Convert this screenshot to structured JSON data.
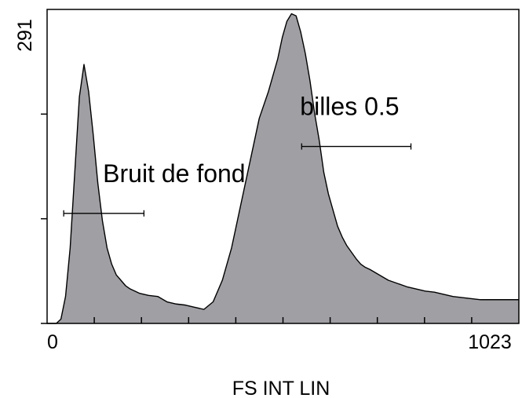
{
  "chart_data": {
    "type": "area",
    "title": "",
    "xlabel": "FS INT LIN",
    "ylabel": "",
    "xlim": [
      0,
      1023
    ],
    "ylim": [
      0,
      291
    ],
    "x_tick_labels": [
      "0",
      "1023"
    ],
    "y_tick_labels": [
      "291"
    ],
    "fill_color": "#a09fa4",
    "line_color": "#000000",
    "series": [
      {
        "x": [
          0,
          10,
          20,
          30,
          40,
          50,
          60,
          70,
          80,
          90,
          100,
          110,
          120,
          130,
          140,
          150,
          160,
          170,
          180,
          190,
          200,
          220,
          240,
          260,
          280,
          300,
          320,
          340,
          360,
          380,
          400,
          420,
          440,
          460,
          480,
          500,
          510,
          520,
          530,
          540,
          550,
          560,
          570,
          580,
          590,
          600,
          610,
          620,
          630,
          640,
          650,
          660,
          670,
          680,
          690,
          700,
          720,
          740,
          760,
          780,
          800,
          820,
          840,
          860,
          880,
          900,
          920,
          940,
          960,
          980,
          1000,
          1023
        ],
        "y": [
          0,
          0,
          0,
          4,
          25,
          70,
          140,
          210,
          240,
          215,
          175,
          130,
          95,
          70,
          55,
          45,
          40,
          35,
          32,
          30,
          28,
          26,
          25,
          20,
          18,
          17,
          15,
          13,
          20,
          40,
          70,
          110,
          150,
          190,
          215,
          245,
          265,
          280,
          287,
          285,
          270,
          250,
          225,
          195,
          170,
          140,
          120,
          105,
          90,
          80,
          72,
          66,
          60,
          55,
          52,
          50,
          45,
          40,
          37,
          34,
          32,
          30,
          29,
          27,
          25,
          24,
          23,
          22,
          22,
          22,
          22,
          22
        ]
      }
    ],
    "gates": [
      {
        "label": "Bruit de fond",
        "x_start": 36,
        "x_end": 210,
        "y": 102
      },
      {
        "label": "billes 0.5",
        "x_start": 552,
        "x_end": 789,
        "y": 164
      }
    ],
    "grid": false,
    "legend": "none"
  }
}
